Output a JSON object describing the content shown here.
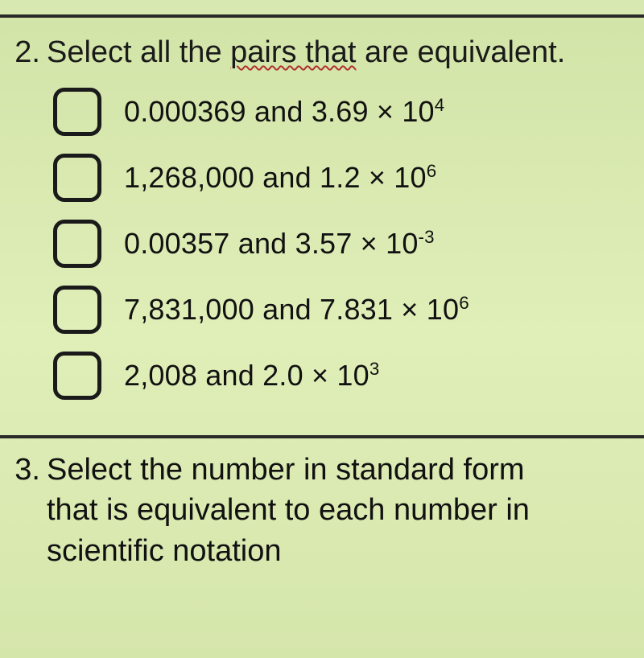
{
  "background_color": "#d7e8b0",
  "divider_color": "#2a2a2a",
  "text_color": "#1a1a1a",
  "wavy_color": "#b03030",
  "font_size_prompt": 38,
  "font_size_option": 36,
  "checkbox": {
    "size": 50,
    "border_width": 5,
    "radius": 14
  },
  "q2": {
    "number": "2.",
    "prompt_pre": "Select all the ",
    "prompt_wavy": "pairs that",
    "prompt_post": " are equivalent.",
    "options": [
      {
        "plain": "0.000369 and 3.69 × 10",
        "exp": "4"
      },
      {
        "plain": "1,268,000 and 1.2 × 10",
        "exp": "6"
      },
      {
        "plain": "0.00357 and 3.57 × 10",
        "exp": "-3"
      },
      {
        "plain": "7,831,000 and 7.831 × 10",
        "exp": "6"
      },
      {
        "plain": "2,008 and 2.0 × 10",
        "exp": "3"
      }
    ]
  },
  "q3": {
    "number": "3.",
    "line1": "Select the number in standard form",
    "line2": "that is equivalent to each number in",
    "line3": "scientific notation"
  }
}
